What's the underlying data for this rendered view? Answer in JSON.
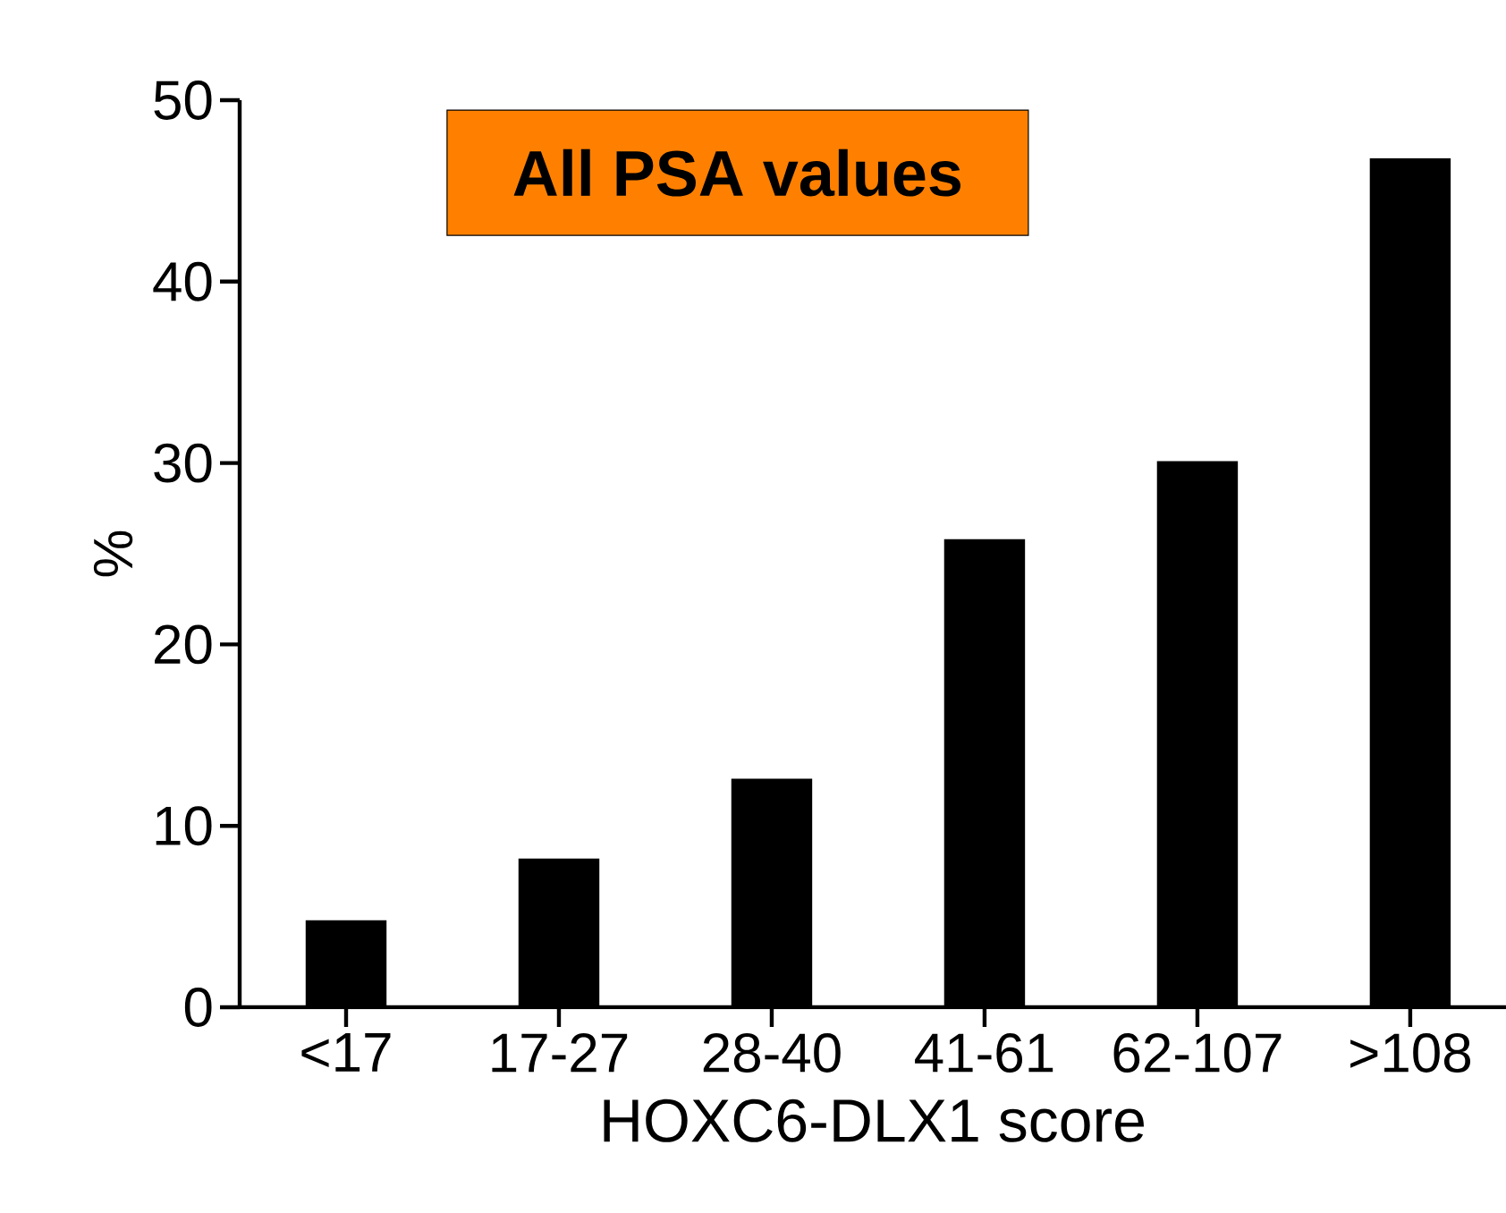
{
  "chart_data": {
    "type": "bar",
    "xlabel": "HOXC6-DLX1 score",
    "ylabel": "%",
    "categories": [
      "<17",
      "17-27",
      "28-40",
      "41-61",
      "62-107",
      ">108"
    ],
    "values": [
      4.8,
      8.2,
      12.6,
      25.8,
      30.1,
      46.8
    ],
    "color": "#000000",
    "ylim": [
      0,
      50
    ],
    "yticks": [
      0,
      10,
      20,
      30,
      40,
      50
    ],
    "annotations": [
      "All PSA values"
    ]
  }
}
